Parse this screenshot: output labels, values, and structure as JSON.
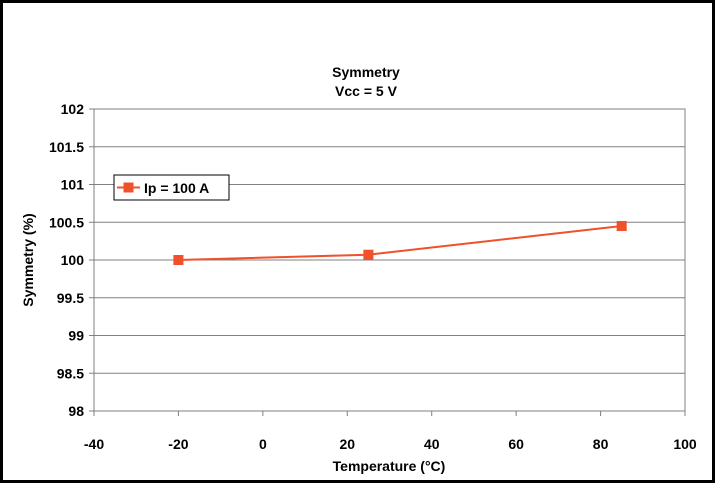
{
  "chart_data": {
    "type": "line",
    "title": "Symmetry",
    "subtitle": "Vcc = 5 V",
    "xlabel": "Temperature (°C)",
    "ylabel": "Symmetry (%)",
    "xlim": [
      -40,
      100
    ],
    "ylim": [
      98,
      102
    ],
    "x_ticks": [
      "-40",
      "-20",
      "0",
      "20",
      "40",
      "60",
      "80",
      "100"
    ],
    "y_ticks": [
      "98",
      "98.5",
      "99",
      "99.5",
      "100",
      "100.5",
      "101",
      "101.5",
      "102"
    ],
    "grid": "horizontal",
    "legend_position": "left",
    "series": [
      {
        "name": "Ip = 100 A",
        "color": "#f0502a",
        "marker": "square",
        "x": [
          -20,
          25,
          85
        ],
        "y": [
          100.0,
          100.07,
          100.45
        ]
      }
    ]
  }
}
